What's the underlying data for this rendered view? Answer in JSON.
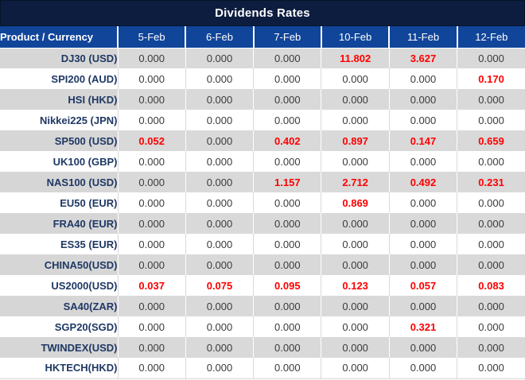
{
  "title": "Dividends Rates",
  "colors": {
    "title_bg": "#0d1d3f",
    "header_bg": "#10459a",
    "header_text": "#ffffff",
    "alt_row_bg": "#d9d9d9",
    "product_text": "#1f3864",
    "value_text": "#3a3a3a",
    "highlight_text": "#ff0000"
  },
  "table": {
    "corner_header": "Product / Currency",
    "date_headers": [
      "5-Feb",
      "6-Feb",
      "7-Feb",
      "10-Feb",
      "11-Feb",
      "12-Feb"
    ],
    "rows": [
      {
        "product": "DJ30 (USD)",
        "values": [
          "0.000",
          "0.000",
          "0.000",
          "11.802",
          "3.627",
          "0.000"
        ],
        "red": [
          false,
          false,
          false,
          true,
          true,
          false
        ]
      },
      {
        "product": "SPI200 (AUD)",
        "values": [
          "0.000",
          "0.000",
          "0.000",
          "0.000",
          "0.000",
          "0.170"
        ],
        "red": [
          false,
          false,
          false,
          false,
          false,
          true
        ]
      },
      {
        "product": "HSI (HKD)",
        "values": [
          "0.000",
          "0.000",
          "0.000",
          "0.000",
          "0.000",
          "0.000"
        ],
        "red": [
          false,
          false,
          false,
          false,
          false,
          false
        ]
      },
      {
        "product": "Nikkei225 (JPN)",
        "values": [
          "0.000",
          "0.000",
          "0.000",
          "0.000",
          "0.000",
          "0.000"
        ],
        "red": [
          false,
          false,
          false,
          false,
          false,
          false
        ]
      },
      {
        "product": "SP500 (USD)",
        "values": [
          "0.052",
          "0.000",
          "0.402",
          "0.897",
          "0.147",
          "0.659"
        ],
        "red": [
          true,
          false,
          true,
          true,
          true,
          true
        ]
      },
      {
        "product": "UK100 (GBP)",
        "values": [
          "0.000",
          "0.000",
          "0.000",
          "0.000",
          "0.000",
          "0.000"
        ],
        "red": [
          false,
          false,
          false,
          false,
          false,
          false
        ]
      },
      {
        "product": "NAS100 (USD)",
        "values": [
          "0.000",
          "0.000",
          "1.157",
          "2.712",
          "0.492",
          "0.231"
        ],
        "red": [
          false,
          false,
          true,
          true,
          true,
          true
        ]
      },
      {
        "product": "EU50 (EUR)",
        "values": [
          "0.000",
          "0.000",
          "0.000",
          "0.869",
          "0.000",
          "0.000"
        ],
        "red": [
          false,
          false,
          false,
          true,
          false,
          false
        ]
      },
      {
        "product": "FRA40 (EUR)",
        "values": [
          "0.000",
          "0.000",
          "0.000",
          "0.000",
          "0.000",
          "0.000"
        ],
        "red": [
          false,
          false,
          false,
          false,
          false,
          false
        ]
      },
      {
        "product": "ES35 (EUR)",
        "values": [
          "0.000",
          "0.000",
          "0.000",
          "0.000",
          "0.000",
          "0.000"
        ],
        "red": [
          false,
          false,
          false,
          false,
          false,
          false
        ]
      },
      {
        "product": "CHINA50(USD)",
        "values": [
          "0.000",
          "0.000",
          "0.000",
          "0.000",
          "0.000",
          "0.000"
        ],
        "red": [
          false,
          false,
          false,
          false,
          false,
          false
        ]
      },
      {
        "product": "US2000(USD)",
        "values": [
          "0.037",
          "0.075",
          "0.095",
          "0.123",
          "0.057",
          "0.083"
        ],
        "red": [
          true,
          true,
          true,
          true,
          true,
          true
        ]
      },
      {
        "product": "SA40(ZAR)",
        "values": [
          "0.000",
          "0.000",
          "0.000",
          "0.000",
          "0.000",
          "0.000"
        ],
        "red": [
          false,
          false,
          false,
          false,
          false,
          false
        ]
      },
      {
        "product": "SGP20(SGD)",
        "values": [
          "0.000",
          "0.000",
          "0.000",
          "0.000",
          "0.321",
          "0.000"
        ],
        "red": [
          false,
          false,
          false,
          false,
          true,
          false
        ]
      },
      {
        "product": "TWINDEX(USD)",
        "values": [
          "0.000",
          "0.000",
          "0.000",
          "0.000",
          "0.000",
          "0.000"
        ],
        "red": [
          false,
          false,
          false,
          false,
          false,
          false
        ]
      },
      {
        "product": "HKTECH(HKD)",
        "values": [
          "0.000",
          "0.000",
          "0.000",
          "0.000",
          "0.000",
          "0.000"
        ],
        "red": [
          false,
          false,
          false,
          false,
          false,
          false
        ]
      }
    ]
  }
}
